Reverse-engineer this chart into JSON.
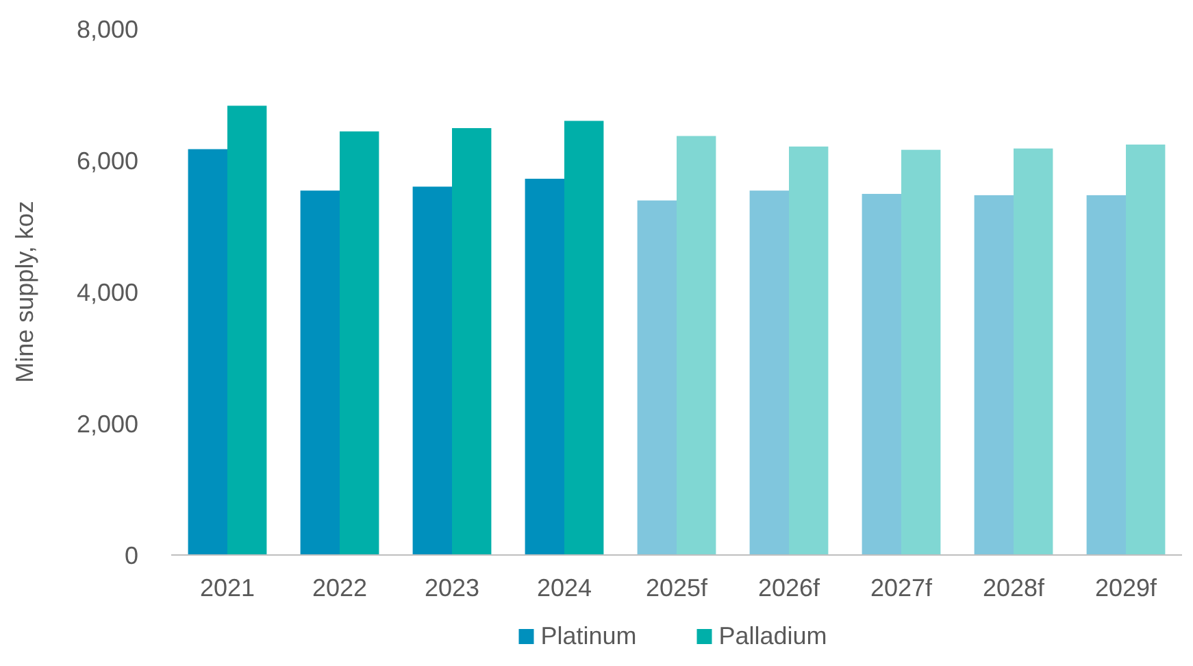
{
  "chart_data": {
    "type": "bar",
    "ylabel": "Mine supply, koz",
    "categories": [
      "2021",
      "2022",
      "2023",
      "2024",
      "2025f",
      "2026f",
      "2027f",
      "2028f",
      "2029f"
    ],
    "series": [
      {
        "name": "Platinum",
        "color": "#0090bd",
        "colors": [
          "#0090bd",
          "#0090bd",
          "#0090bd",
          "#0090bd",
          "#80c6dd",
          "#80c6dd",
          "#80c6dd",
          "#80c6dd",
          "#80c6dd"
        ],
        "values": [
          6170,
          5540,
          5600,
          5720,
          5390,
          5540,
          5490,
          5470,
          5470
        ]
      },
      {
        "name": "Palladium",
        "color": "#00afa9",
        "colors": [
          "#00afa9",
          "#00afa9",
          "#00afa9",
          "#00afa9",
          "#80d7d3",
          "#80d7d3",
          "#80d7d3",
          "#80d7d3",
          "#80d7d3"
        ],
        "values": [
          6830,
          6440,
          6490,
          6600,
          6370,
          6210,
          6160,
          6180,
          6240
        ]
      }
    ],
    "ylim": [
      0,
      8000
    ],
    "yticks": [
      {
        "value": 0,
        "label": "0"
      },
      {
        "value": 2000,
        "label": "2,000"
      },
      {
        "value": 4000,
        "label": "4,000"
      },
      {
        "value": 6000,
        "label": "6,000"
      },
      {
        "value": 8000,
        "label": "8,000"
      }
    ],
    "grid": false,
    "legend": "bottom"
  }
}
